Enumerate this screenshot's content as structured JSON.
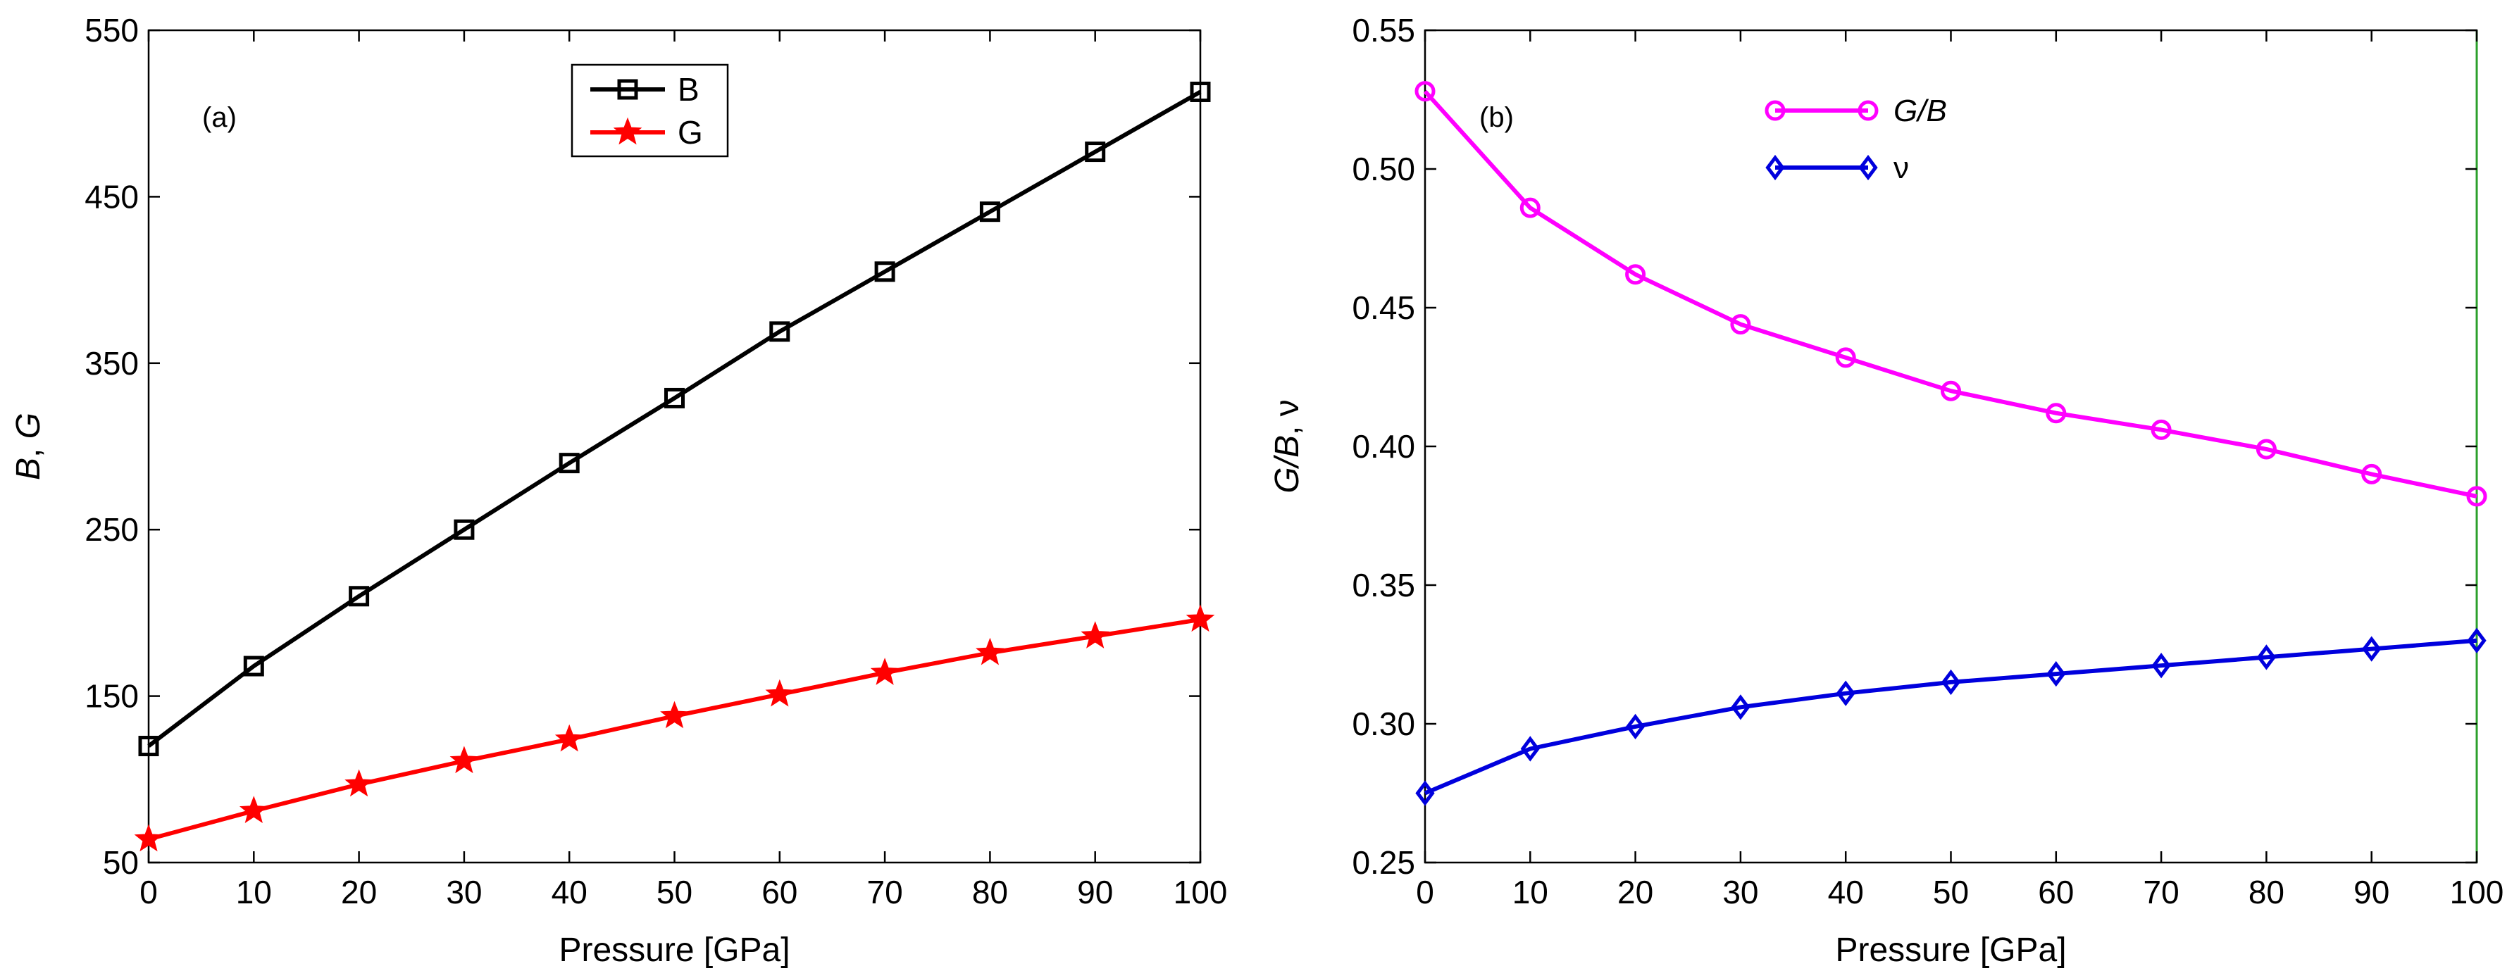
{
  "chart_data": [
    {
      "type": "line",
      "panel_label": "(a)",
      "xlabel": "Pressure [GPa]",
      "ylabel_parts": [
        "B",
        ", ",
        "G"
      ],
      "xlim": [
        0,
        100
      ],
      "ylim": [
        50,
        550
      ],
      "xticks": [
        0,
        10,
        20,
        30,
        40,
        50,
        60,
        70,
        80,
        90,
        100
      ],
      "yticks": [
        50,
        150,
        250,
        350,
        450,
        550
      ],
      "x": [
        0,
        10,
        20,
        30,
        40,
        50,
        60,
        70,
        80,
        90,
        100
      ],
      "series": [
        {
          "name": "B",
          "color": "#000000",
          "marker": "square",
          "values": [
            120,
            168,
            210,
            250,
            290,
            329,
            369,
            405,
            441,
            477,
            513
          ]
        },
        {
          "name": "G",
          "color": "#ff0000",
          "marker": "star",
          "values": [
            64,
            81,
            97,
            111,
            124,
            138,
            151,
            164,
            176,
            186,
            196
          ]
        }
      ],
      "legend_position": "top-center"
    },
    {
      "type": "line",
      "panel_label": "(b)",
      "xlabel": "Pressure [GPa]",
      "ylabel_parts": [
        "G/B",
        ",  ",
        "ν"
      ],
      "xlim": [
        0,
        100
      ],
      "ylim": [
        0.25,
        0.55
      ],
      "xticks": [
        0,
        10,
        20,
        30,
        40,
        50,
        60,
        70,
        80,
        90,
        100
      ],
      "yticks": [
        "0.25",
        "0.30",
        "0.35",
        "0.40",
        "0.45",
        "0.50",
        "0.55"
      ],
      "x": [
        0,
        10,
        20,
        30,
        40,
        50,
        60,
        70,
        80,
        90,
        100
      ],
      "series": [
        {
          "name": "G/B",
          "color": "#ff00ff",
          "marker": "circle",
          "values": [
            0.528,
            0.486,
            0.462,
            0.444,
            0.432,
            0.42,
            0.412,
            0.406,
            0.399,
            0.39,
            0.382
          ]
        },
        {
          "name": "ν",
          "color": "#0000dd",
          "marker": "diamond",
          "values": [
            0.275,
            0.291,
            0.299,
            0.306,
            0.311,
            0.315,
            0.318,
            0.321,
            0.324,
            0.327,
            0.33
          ]
        }
      ],
      "legend_position": "top-center"
    }
  ]
}
